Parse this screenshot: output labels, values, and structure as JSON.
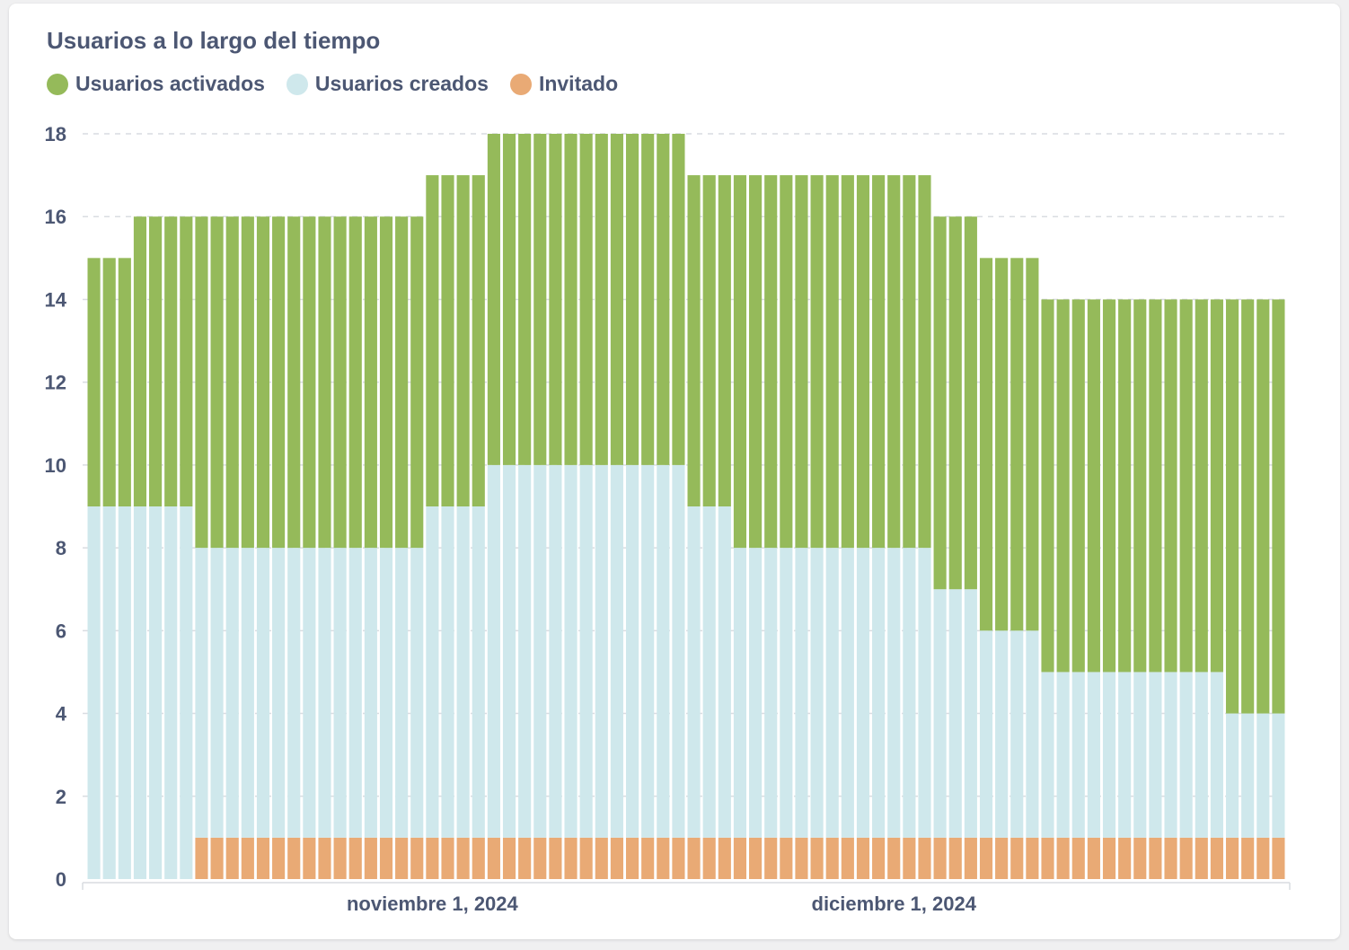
{
  "colors": {
    "activated": "#95ba5a",
    "created": "#cfe8ec",
    "invited": "#e9aa75",
    "grid": "#d9dce1",
    "text": "#4c5773"
  },
  "chart_data": {
    "type": "bar",
    "stacked": true,
    "title": "Usuarios a lo largo del tiempo",
    "legend_position": "top-left",
    "grid": true,
    "xlabel": "",
    "ylabel": "",
    "ylim": [
      0,
      18
    ],
    "yticks": [
      0,
      2,
      4,
      6,
      8,
      10,
      12,
      14,
      16,
      18
    ],
    "xtick_labels": [
      {
        "label": "noviembre 1, 2024",
        "category_index": 22
      },
      {
        "label": "diciembre 1, 2024",
        "category_index": 52
      }
    ],
    "categories_note": "78 daily bars",
    "series": [
      {
        "name": "Invitado",
        "key": "invited",
        "values": [
          0,
          0,
          0,
          0,
          0,
          0,
          0,
          1,
          1,
          1,
          1,
          1,
          1,
          1,
          1,
          1,
          1,
          1,
          1,
          1,
          1,
          1,
          1,
          1,
          1,
          1,
          1,
          1,
          1,
          1,
          1,
          1,
          1,
          1,
          1,
          1,
          1,
          1,
          1,
          1,
          1,
          1,
          1,
          1,
          1,
          1,
          1,
          1,
          1,
          1,
          1,
          1,
          1,
          1,
          1,
          1,
          1,
          1,
          1,
          1,
          1,
          1,
          1,
          1,
          1,
          1,
          1,
          1,
          1,
          1,
          1,
          1,
          1,
          1,
          1,
          1,
          1,
          1
        ]
      },
      {
        "name": "Usuarios creados",
        "key": "created",
        "values": [
          9,
          9,
          9,
          9,
          9,
          9,
          9,
          7,
          7,
          7,
          7,
          7,
          7,
          7,
          7,
          7,
          7,
          7,
          7,
          7,
          7,
          7,
          8,
          8,
          8,
          8,
          9,
          9,
          9,
          9,
          9,
          9,
          9,
          9,
          9,
          9,
          9,
          9,
          9,
          8,
          8,
          8,
          7,
          7,
          7,
          7,
          7,
          7,
          7,
          7,
          7,
          7,
          7,
          7,
          7,
          6,
          6,
          6,
          5,
          5,
          5,
          5,
          4,
          4,
          4,
          4,
          4,
          4,
          4,
          4,
          4,
          4,
          4,
          4,
          3,
          3,
          3,
          3
        ]
      },
      {
        "name": "Usuarios activados",
        "key": "activated",
        "values": [
          6,
          6,
          6,
          7,
          7,
          7,
          7,
          8,
          8,
          8,
          8,
          8,
          8,
          8,
          8,
          8,
          8,
          8,
          8,
          8,
          8,
          8,
          8,
          8,
          8,
          8,
          8,
          8,
          8,
          8,
          8,
          8,
          8,
          8,
          8,
          8,
          8,
          8,
          8,
          8,
          8,
          8,
          9,
          9,
          9,
          9,
          9,
          9,
          9,
          9,
          9,
          9,
          9,
          9,
          9,
          9,
          9,
          9,
          9,
          9,
          9,
          9,
          9,
          9,
          9,
          9,
          9,
          9,
          9,
          9,
          9,
          9,
          9,
          9,
          10,
          10,
          10,
          10
        ]
      }
    ]
  }
}
